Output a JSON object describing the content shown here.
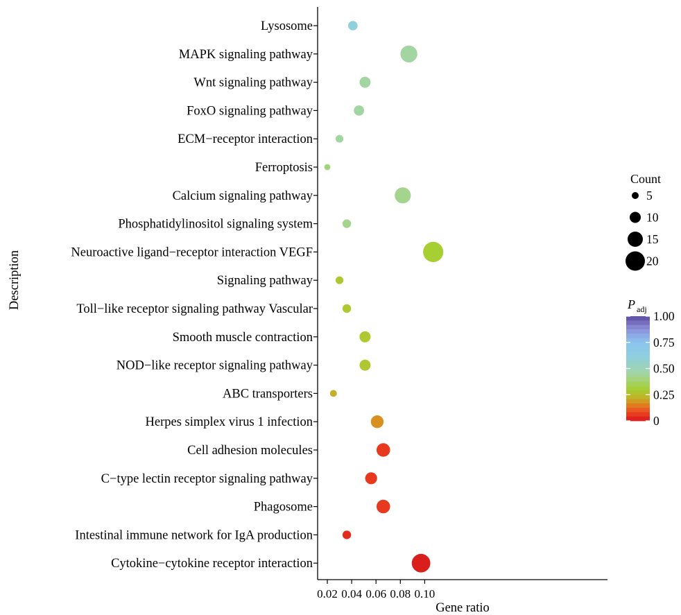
{
  "chart_data": {
    "type": "scatter",
    "title": "",
    "xlabel": "Gene ratio",
    "ylabel": "Description",
    "xlim": [
      0.016,
      0.112
    ],
    "xticks": [
      0.02,
      0.04,
      0.06,
      0.08,
      0.1
    ],
    "xtick_labels": [
      "0.02",
      "0.04",
      "0.06",
      "0.08",
      "0.10"
    ],
    "grid": false,
    "points": [
      {
        "description": "Lysosome",
        "gene_ratio": 0.041,
        "count": 8,
        "p_adj": 0.6
      },
      {
        "description": "MAPK signaling pathway",
        "gene_ratio": 0.087,
        "count": 17,
        "p_adj": 0.45
      },
      {
        "description": "Wnt signaling pathway",
        "gene_ratio": 0.051,
        "count": 10,
        "p_adj": 0.45
      },
      {
        "description": "FoxO signaling pathway",
        "gene_ratio": 0.046,
        "count": 9,
        "p_adj": 0.45
      },
      {
        "description": "ECM−receptor interaction",
        "gene_ratio": 0.03,
        "count": 6,
        "p_adj": 0.45
      },
      {
        "description": "Ferroptosis",
        "gene_ratio": 0.02,
        "count": 4,
        "p_adj": 0.4
      },
      {
        "description": "Calcium signaling pathway",
        "gene_ratio": 0.082,
        "count": 16,
        "p_adj": 0.42
      },
      {
        "description": "Phosphatidylinositol signaling system",
        "gene_ratio": 0.036,
        "count": 7,
        "p_adj": 0.42
      },
      {
        "description": "Neuroactive ligand−receptor interaction VEGF",
        "gene_ratio": 0.107,
        "count": 21,
        "p_adj": 0.3
      },
      {
        "description": "Signaling pathway",
        "gene_ratio": 0.03,
        "count": 6,
        "p_adj": 0.28
      },
      {
        "description": "Toll−like receptor signaling pathway Vascular",
        "gene_ratio": 0.036,
        "count": 7,
        "p_adj": 0.28
      },
      {
        "description": "Smooth muscle contraction",
        "gene_ratio": 0.051,
        "count": 10,
        "p_adj": 0.28
      },
      {
        "description": "NOD−like receptor signaling pathway",
        "gene_ratio": 0.051,
        "count": 10,
        "p_adj": 0.28
      },
      {
        "description": "ABC transporters",
        "gene_ratio": 0.025,
        "count": 5,
        "p_adj": 0.22
      },
      {
        "description": "Herpes simplex virus 1 infection",
        "gene_ratio": 0.061,
        "count": 12,
        "p_adj": 0.17
      },
      {
        "description": "Cell adhesion molecules",
        "gene_ratio": 0.066,
        "count": 13,
        "p_adj": 0.06
      },
      {
        "description": "C−type lectin receptor signaling pathway",
        "gene_ratio": 0.056,
        "count": 11,
        "p_adj": 0.06
      },
      {
        "description": "Phagosome",
        "gene_ratio": 0.066,
        "count": 13,
        "p_adj": 0.06
      },
      {
        "description": "Intestinal immune network for IgA production",
        "gene_ratio": 0.036,
        "count": 7,
        "p_adj": 0.04
      },
      {
        "description": "Cytokine−cytokine receptor interaction",
        "gene_ratio": 0.097,
        "count": 19,
        "p_adj": 0.01
      }
    ],
    "size_legend": {
      "title": "Count",
      "values": [
        5,
        10,
        15,
        20
      ],
      "labels": [
        "5",
        "10",
        "15",
        "20"
      ]
    },
    "color_legend": {
      "title_main": "P",
      "title_sub": "adj",
      "range": [
        0,
        1
      ],
      "ticks": [
        0,
        0.25,
        0.5,
        0.75,
        1.0
      ],
      "tick_labels": [
        "0",
        "0.25",
        "0.50",
        "0.75",
        "1.00"
      ],
      "stops": [
        {
          "v": 0.0,
          "c": "#d7191c"
        },
        {
          "v": 0.05,
          "c": "#e5321e"
        },
        {
          "v": 0.12,
          "c": "#ea6422"
        },
        {
          "v": 0.17,
          "c": "#d8911e"
        },
        {
          "v": 0.22,
          "c": "#c0b229"
        },
        {
          "v": 0.3,
          "c": "#a6cf33"
        },
        {
          "v": 0.45,
          "c": "#a3d5a3"
        },
        {
          "v": 0.6,
          "c": "#8fd0db"
        },
        {
          "v": 0.75,
          "c": "#8cc4ef"
        },
        {
          "v": 0.88,
          "c": "#8c8fd8"
        },
        {
          "v": 1.0,
          "c": "#5b4aa0"
        }
      ]
    }
  }
}
